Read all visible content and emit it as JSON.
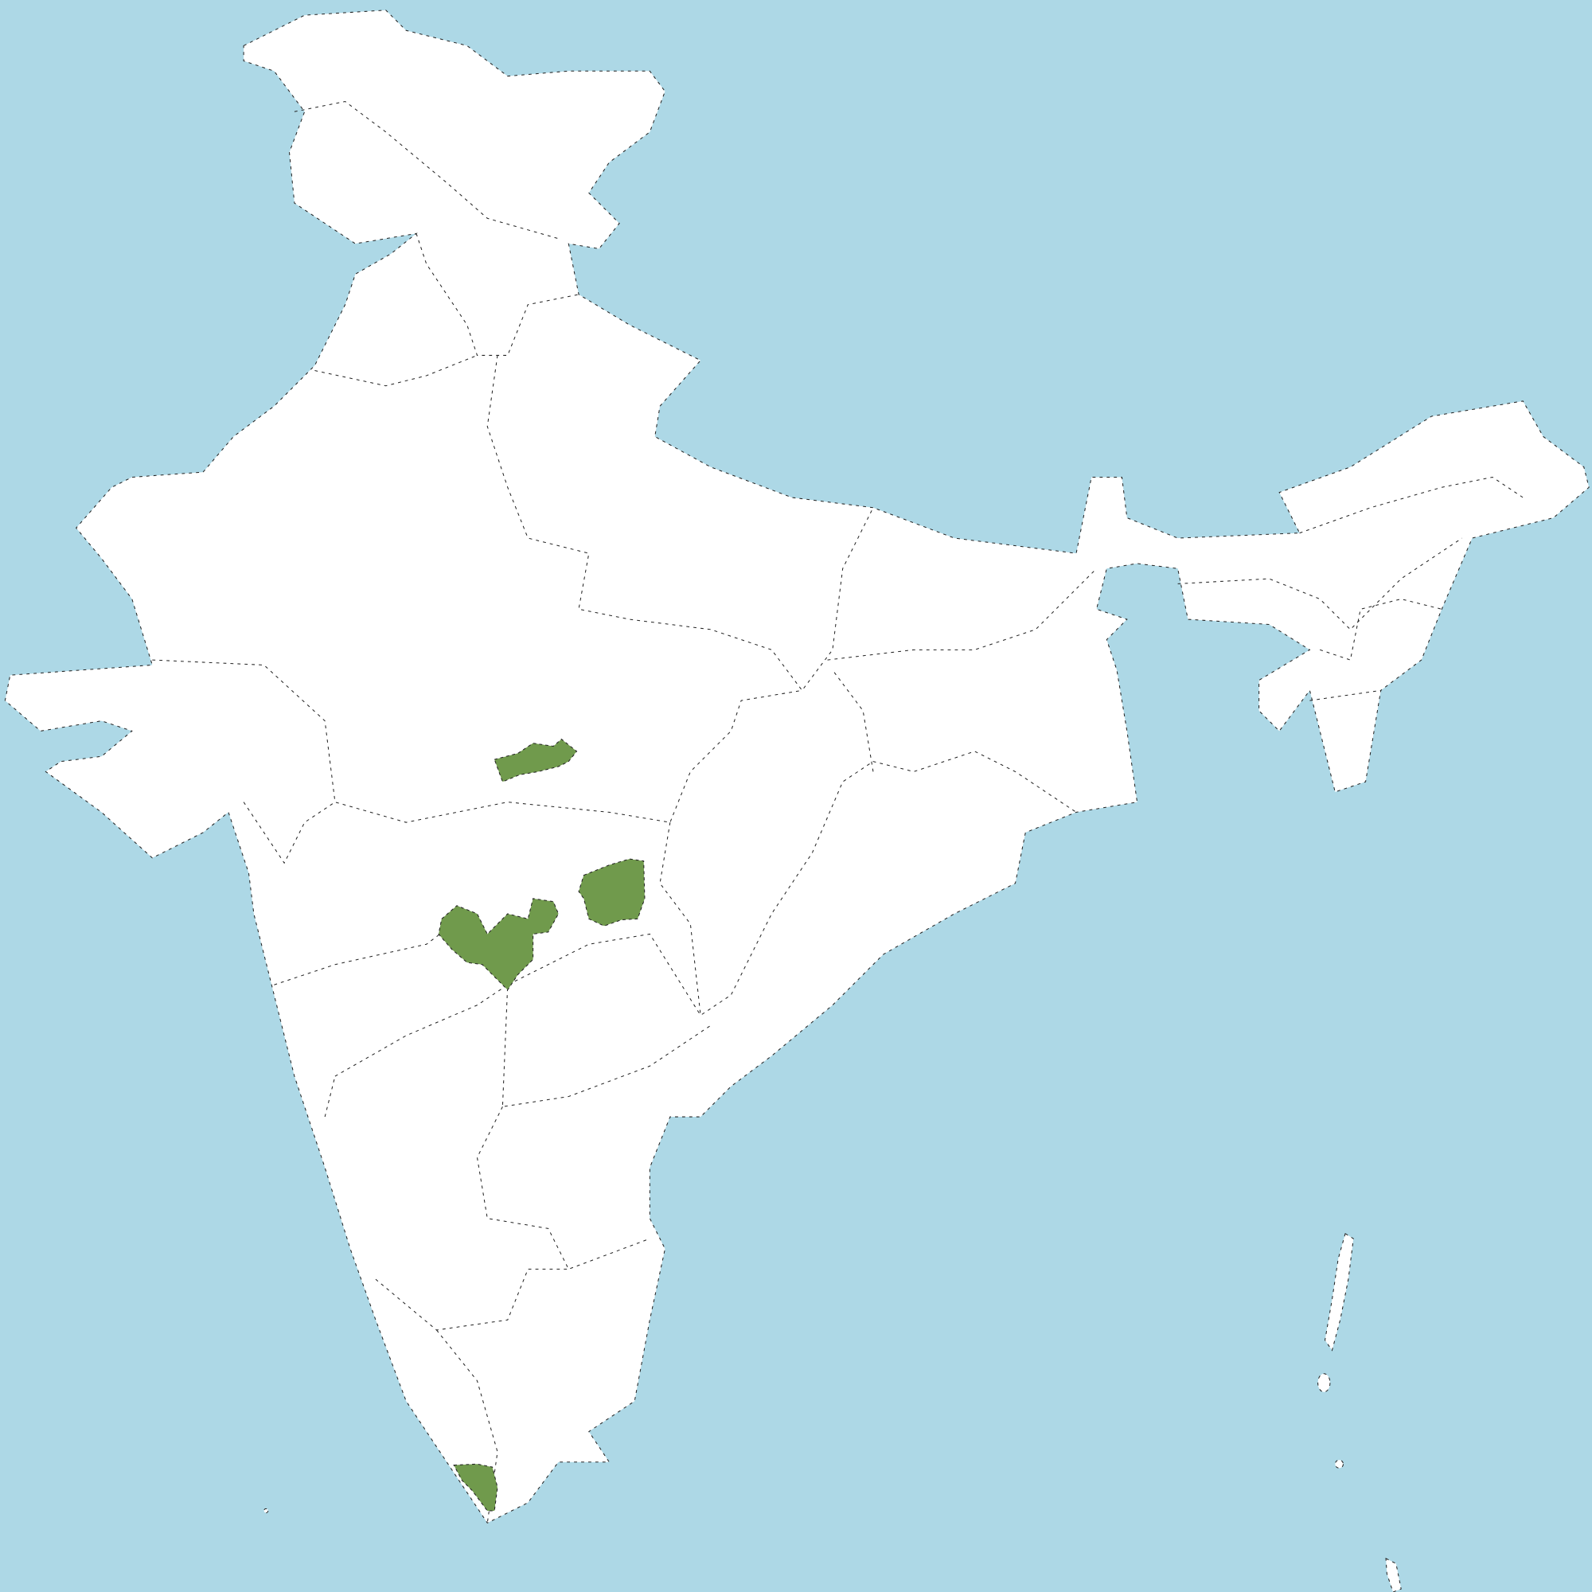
{
  "map": {
    "colors": {
      "water": "#add8e6",
      "land": "#ffffff",
      "highlight": "#709a4c",
      "border": "#222222"
    },
    "highlighted_region_count": 4
  }
}
